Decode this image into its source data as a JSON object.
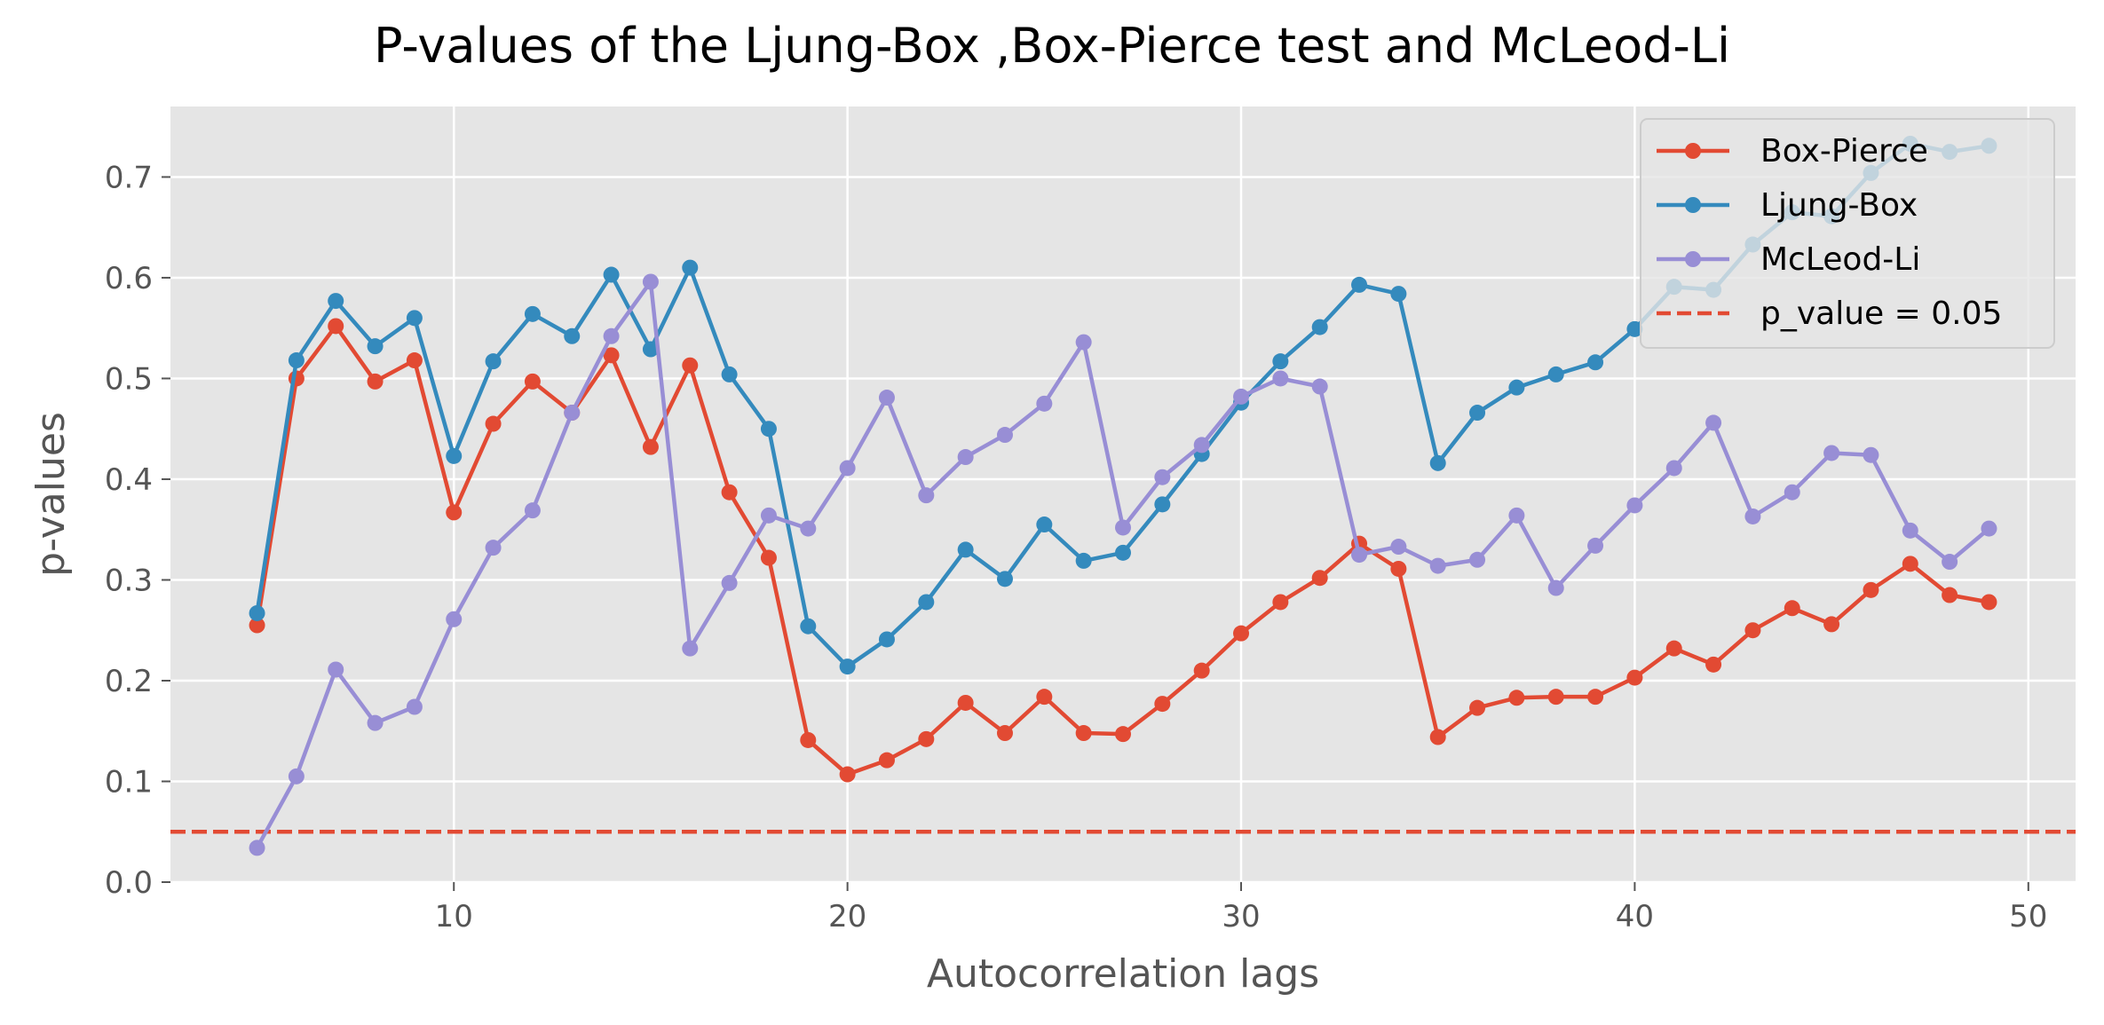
{
  "chart_data": {
    "type": "line",
    "title": "P-values of the Ljung-Box ,Box-Pierce test and McLeod-Li",
    "xlabel": "Autocorrelation lags",
    "ylabel": "p-values",
    "xlim": [
      2.8,
      51.2
    ],
    "ylim": [
      0.0,
      0.77
    ],
    "xticks": [
      10,
      20,
      30,
      40,
      50
    ],
    "yticks": [
      0.0,
      0.1,
      0.2,
      0.3,
      0.4,
      0.5,
      0.6,
      0.7
    ],
    "xtick_labels": [
      "10",
      "20",
      "30",
      "40",
      "50"
    ],
    "ytick_labels": [
      "0.0",
      "0.1",
      "0.2",
      "0.3",
      "0.4",
      "0.5",
      "0.6",
      "0.7"
    ],
    "grid": true,
    "legend_position": "top-right",
    "background": "#e5e5e5",
    "x": [
      5,
      6,
      7,
      8,
      9,
      10,
      11,
      12,
      13,
      14,
      15,
      16,
      17,
      18,
      19,
      20,
      21,
      22,
      23,
      24,
      25,
      26,
      27,
      28,
      29,
      30,
      31,
      32,
      33,
      34,
      35,
      36,
      37,
      38,
      39,
      40,
      41,
      42,
      43,
      44,
      45,
      46,
      47,
      48,
      49
    ],
    "series": [
      {
        "name": "Box-Pierce",
        "color": "#E24A33",
        "values": [
          0.255,
          0.5,
          0.552,
          0.497,
          0.518,
          0.367,
          0.455,
          0.497,
          0.466,
          0.523,
          0.432,
          0.513,
          0.387,
          0.322,
          0.141,
          0.107,
          0.121,
          0.142,
          0.178,
          0.148,
          0.184,
          0.148,
          0.147,
          0.177,
          0.21,
          0.247,
          0.278,
          0.302,
          0.336,
          0.311,
          0.144,
          0.173,
          0.183,
          0.184,
          0.184,
          0.203,
          0.232,
          0.216,
          0.25,
          0.272,
          0.256,
          0.29,
          0.316,
          0.285,
          0.278
        ]
      },
      {
        "name": "Ljung-Box",
        "color": "#348ABD",
        "values": [
          0.267,
          0.518,
          0.577,
          0.532,
          0.56,
          0.423,
          0.517,
          0.564,
          0.542,
          0.603,
          0.529,
          0.61,
          0.504,
          0.45,
          0.254,
          0.214,
          0.241,
          0.278,
          0.33,
          0.301,
          0.355,
          0.319,
          0.327,
          0.375,
          0.425,
          0.476,
          0.517,
          0.551,
          0.593,
          0.584,
          0.416,
          0.466,
          0.491,
          0.504,
          0.516,
          0.549,
          0.591,
          0.588,
          0.633,
          0.665,
          0.661,
          0.704,
          0.733,
          0.725,
          0.731
        ]
      },
      {
        "name": "McLeod-Li",
        "color": "#988ED5",
        "values": [
          0.034,
          0.105,
          0.211,
          0.158,
          0.174,
          0.261,
          0.332,
          0.369,
          0.466,
          0.542,
          0.596,
          0.232,
          0.297,
          0.364,
          0.351,
          0.411,
          0.481,
          0.384,
          0.422,
          0.444,
          0.475,
          0.536,
          0.352,
          0.402,
          0.434,
          0.482,
          0.5,
          0.492,
          0.325,
          0.333,
          0.314,
          0.32,
          0.364,
          0.292,
          0.334,
          0.374,
          0.411,
          0.456,
          0.363,
          0.387,
          0.426,
          0.424,
          0.349,
          0.318,
          0.351
        ]
      }
    ],
    "reference_line": {
      "label": "p_value = 0.05",
      "value": 0.05,
      "color": "#E24A33",
      "style": "dashed"
    }
  }
}
